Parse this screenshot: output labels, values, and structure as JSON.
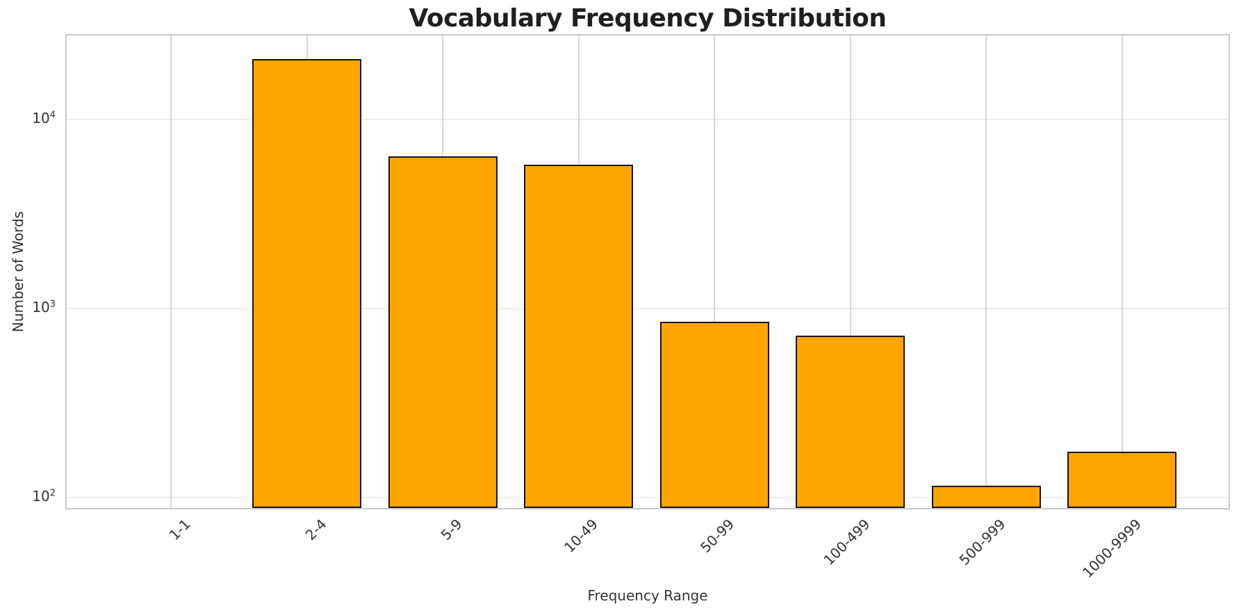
{
  "chart_data": {
    "type": "bar",
    "title": "Vocabulary Frequency Distribution",
    "xlabel": "Frequency Range",
    "ylabel": "Number of Words",
    "categories": [
      "1-1",
      "2-4",
      "5-9",
      "10-49",
      "50-99",
      "100-499",
      "500-999",
      "1000-9999"
    ],
    "values": [
      0,
      21000,
      6400,
      5800,
      850,
      720,
      115,
      175
    ],
    "yscale": "log",
    "ylim": [
      88,
      28000
    ],
    "yticks": [
      {
        "value": 100,
        "base": "10",
        "exp": "2"
      },
      {
        "value": 1000,
        "base": "10",
        "exp": "3"
      },
      {
        "value": 10000,
        "base": "10",
        "exp": "4"
      }
    ],
    "grid": true,
    "legend_position": "none",
    "xtick_rotation_deg": 45,
    "bar_color": "#FFA500",
    "bar_edge_color": "#151515",
    "background_color": "#ffffff",
    "grid_color_horizontal": "#ededed",
    "grid_color_vertical": "#d7d7d7",
    "spine_color": "#c9c9c9",
    "text_color": "#333333",
    "title_color": "#1f1f1f"
  }
}
